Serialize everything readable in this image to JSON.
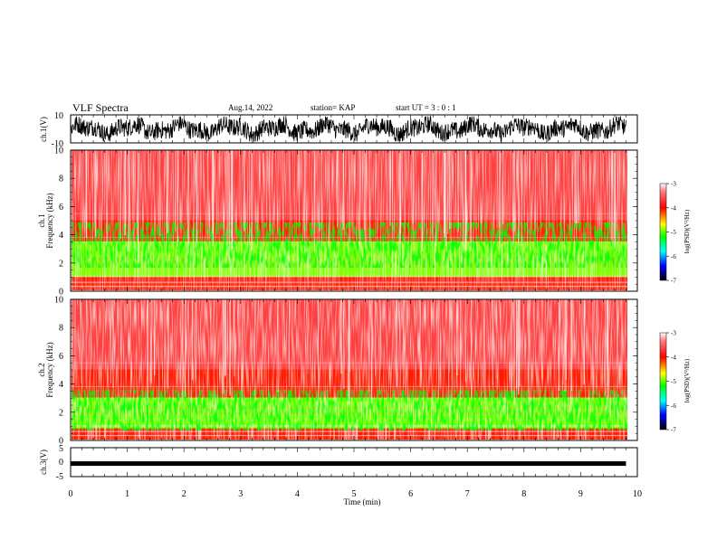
{
  "header": {
    "title": "VLF Spectra",
    "date": "Aug.14, 2022",
    "station": "station= KAP",
    "start_ut": "start  UT  =   3 : 0  : 1"
  },
  "colors": {
    "spectro_bg": "#ff3030",
    "weak": "#ffffff",
    "mid": "#ffff00",
    "strong": "#00ff00",
    "cb_red": "#ff0000",
    "cb_yellow": "#ffff00",
    "cb_green": "#00ff00",
    "cb_cyan": "#00ffff",
    "cb_blue": "#0000ff",
    "cb_black": "#000000"
  },
  "chart_data": [
    {
      "type": "line",
      "name": "ch1-waveform",
      "ylabel": "ch.1(V)",
      "ylim": [
        -10,
        10
      ],
      "ytick_labels": [
        "10",
        "-10"
      ],
      "xlim": [
        0,
        10
      ],
      "data_extent_min": 9.8,
      "amplitude_range": [
        -9,
        9
      ],
      "description_values": {
        "typical_min": -9,
        "typical_max": 9
      }
    },
    {
      "type": "heatmap",
      "name": "ch1-spectrogram",
      "ylabel_channel": "ch.1",
      "ylabel": "Frequency (kHz)",
      "ylim": [
        0,
        10
      ],
      "ytick_labels": [
        "0",
        "2",
        "4",
        "6",
        "8",
        "10"
      ],
      "xlim": [
        0,
        10
      ],
      "band_levels": [
        {
          "freq_from": 0.0,
          "freq_to": 1.0,
          "level": -3.8
        },
        {
          "freq_from": 1.0,
          "freq_to": 3.5,
          "level": -4.8
        },
        {
          "freq_from": 3.5,
          "freq_to": 5.0,
          "level": -3.9
        },
        {
          "freq_from": 5.0,
          "freq_to": 10.0,
          "level": -3.4
        }
      ],
      "colorbar": {
        "label": "log(PSD)(V²/Hz)",
        "range": [
          -7,
          -3
        ],
        "tick_labels": [
          "-3",
          "-4",
          "-5",
          "-6",
          "-7"
        ]
      }
    },
    {
      "type": "heatmap",
      "name": "ch2-spectrogram",
      "ylabel_channel": "ch.2",
      "ylabel": "Frequency (kHz)",
      "ylim": [
        0,
        10
      ],
      "ytick_labels": [
        "0",
        "2",
        "4",
        "6",
        "8",
        "10"
      ],
      "xlim": [
        0,
        10
      ],
      "band_levels": [
        {
          "freq_from": 0.0,
          "freq_to": 0.8,
          "level": -3.8
        },
        {
          "freq_from": 0.8,
          "freq_to": 3.0,
          "level": -4.8
        },
        {
          "freq_from": 3.0,
          "freq_to": 5.0,
          "level": -3.9
        },
        {
          "freq_from": 5.0,
          "freq_to": 10.0,
          "level": -3.3
        }
      ],
      "colorbar": {
        "label": "log(PSD)(V²/Hz)",
        "range": [
          -7,
          -3
        ],
        "tick_labels": [
          "-3",
          "-4",
          "-5",
          "-6",
          "-7"
        ]
      }
    },
    {
      "type": "line",
      "name": "ch3-waveform",
      "ylabel": "ch.3(V)",
      "ylim": [
        -5,
        5
      ],
      "ytick_labels": [
        "5",
        "0",
        "-5"
      ],
      "xlim": [
        0,
        10
      ],
      "data_extent_min": 9.8,
      "level": -0.5
    }
  ],
  "xaxis": {
    "label": "Time  (min)",
    "range": [
      0,
      10
    ],
    "tick_labels": [
      "0",
      "1",
      "2",
      "3",
      "4",
      "5",
      "6",
      "7",
      "8",
      "9",
      "10"
    ]
  }
}
